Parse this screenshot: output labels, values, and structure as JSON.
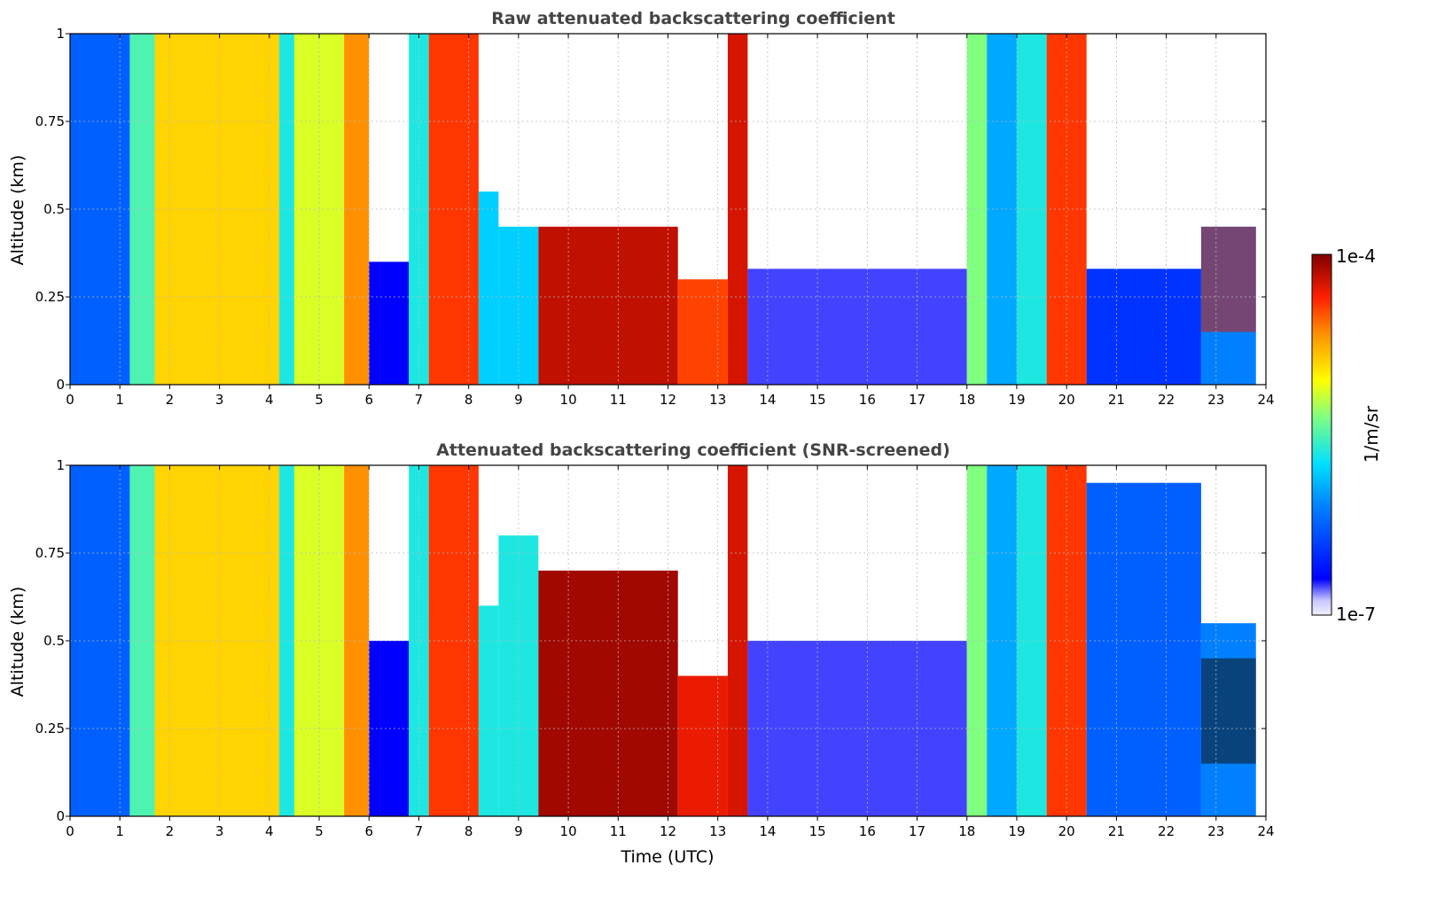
{
  "chart_data": [
    {
      "type": "heatmap",
      "title": "Raw attenuated backscattering coefficient",
      "xlabel": "",
      "ylabel": "Altitude (km)",
      "xlim": [
        0,
        24
      ],
      "ylim": [
        0,
        1
      ],
      "x_ticks": [
        "0",
        "1",
        "2",
        "3",
        "4",
        "5",
        "6",
        "7",
        "8",
        "9",
        "10",
        "11",
        "12",
        "13",
        "14",
        "15",
        "16",
        "17",
        "18",
        "19",
        "20",
        "21",
        "22",
        "23",
        "24"
      ],
      "y_ticks": [
        "0",
        "0.25",
        "0.5",
        "0.75",
        "1"
      ],
      "grid": true,
      "colorscale": "jet",
      "screened": false,
      "segments": [
        {
          "t0": 0.0,
          "t1": 1.2,
          "level": 0.25,
          "top": 1.0
        },
        {
          "t0": 1.2,
          "t1": 1.7,
          "level": 0.5,
          "top": 1.0
        },
        {
          "t0": 1.7,
          "t1": 4.2,
          "level": 0.7,
          "top": 1.0
        },
        {
          "t0": 4.2,
          "t1": 4.5,
          "level": 0.45,
          "top": 1.0
        },
        {
          "t0": 4.5,
          "t1": 5.5,
          "level": 0.62,
          "top": 1.0
        },
        {
          "t0": 5.5,
          "t1": 6.0,
          "level": 0.78,
          "top": 1.0
        },
        {
          "t0": 6.0,
          "t1": 6.8,
          "level": 0.1,
          "top": 0.35
        },
        {
          "t0": 6.8,
          "t1": 7.2,
          "level": 0.45,
          "top": 1.0
        },
        {
          "t0": 7.2,
          "t1": 8.2,
          "level": 0.86,
          "top": 1.0
        },
        {
          "t0": 8.2,
          "t1": 8.6,
          "level": 0.4,
          "top": 0.55
        },
        {
          "t0": 8.6,
          "t1": 9.4,
          "level": 0.4,
          "top": 0.45
        },
        {
          "t0": 9.4,
          "t1": 12.2,
          "level": 0.94,
          "top": 0.45
        },
        {
          "t0": 12.2,
          "t1": 13.2,
          "level": 0.85,
          "top": 0.3
        },
        {
          "t0": 13.2,
          "t1": 13.6,
          "level": 0.92,
          "top": 1.0
        },
        {
          "t0": 13.6,
          "t1": 18.0,
          "level": 0.08,
          "top": 0.33
        },
        {
          "t0": 18.0,
          "t1": 18.4,
          "level": 0.55,
          "top": 1.0
        },
        {
          "t0": 18.4,
          "t1": 19.0,
          "level": 0.35,
          "top": 1.0
        },
        {
          "t0": 19.0,
          "t1": 19.6,
          "level": 0.45,
          "top": 1.0
        },
        {
          "t0": 19.6,
          "t1": 20.4,
          "level": 0.86,
          "top": 1.0
        },
        {
          "t0": 20.4,
          "t1": 22.7,
          "level": 0.18,
          "top": 0.33
        },
        {
          "t0": 22.7,
          "t1": 23.8,
          "level": 0.3,
          "top": 0.45
        }
      ],
      "clouds": [
        {
          "t0": 22.7,
          "t1": 23.8,
          "bottom": 0.15,
          "top": 0.45,
          "level": 0.92
        }
      ]
    },
    {
      "type": "heatmap",
      "title": "Attenuated backscattering coefficient (SNR-screened)",
      "xlabel": "Time (UTC)",
      "ylabel": "Altitude (km)",
      "xlim": [
        0,
        24
      ],
      "ylim": [
        0,
        1
      ],
      "x_ticks": [
        "0",
        "1",
        "2",
        "3",
        "4",
        "5",
        "6",
        "7",
        "8",
        "9",
        "10",
        "11",
        "12",
        "13",
        "14",
        "15",
        "16",
        "17",
        "18",
        "19",
        "20",
        "21",
        "22",
        "23",
        "24"
      ],
      "y_ticks": [
        "0",
        "0.25",
        "0.5",
        "0.75",
        "1"
      ],
      "grid": true,
      "colorscale": "jet",
      "screened": true,
      "segments": [
        {
          "t0": 0.0,
          "t1": 1.2,
          "level": 0.25,
          "top": 1.0
        },
        {
          "t0": 1.2,
          "t1": 1.7,
          "level": 0.5,
          "top": 1.0
        },
        {
          "t0": 1.7,
          "t1": 4.2,
          "level": 0.7,
          "top": 1.0
        },
        {
          "t0": 4.2,
          "t1": 4.5,
          "level": 0.45,
          "top": 1.0
        },
        {
          "t0": 4.5,
          "t1": 5.5,
          "level": 0.62,
          "top": 1.0
        },
        {
          "t0": 5.5,
          "t1": 6.0,
          "level": 0.78,
          "top": 1.0
        },
        {
          "t0": 6.0,
          "t1": 6.8,
          "level": 0.1,
          "top": 0.5
        },
        {
          "t0": 6.8,
          "t1": 7.2,
          "level": 0.45,
          "top": 1.0
        },
        {
          "t0": 7.2,
          "t1": 8.2,
          "level": 0.86,
          "top": 1.0
        },
        {
          "t0": 8.2,
          "t1": 8.6,
          "level": 0.45,
          "top": 0.6
        },
        {
          "t0": 8.6,
          "t1": 9.4,
          "level": 0.45,
          "top": 0.8
        },
        {
          "t0": 9.4,
          "t1": 12.2,
          "level": 0.97,
          "top": 0.7
        },
        {
          "t0": 12.2,
          "t1": 13.2,
          "level": 0.9,
          "top": 0.4
        },
        {
          "t0": 13.2,
          "t1": 13.6,
          "level": 0.92,
          "top": 1.0
        },
        {
          "t0": 13.6,
          "t1": 18.0,
          "level": 0.08,
          "top": 0.5
        },
        {
          "t0": 18.0,
          "t1": 18.4,
          "level": 0.55,
          "top": 1.0
        },
        {
          "t0": 18.4,
          "t1": 19.0,
          "level": 0.35,
          "top": 1.0
        },
        {
          "t0": 19.0,
          "t1": 19.6,
          "level": 0.45,
          "top": 1.0
        },
        {
          "t0": 19.6,
          "t1": 20.4,
          "level": 0.86,
          "top": 1.0
        },
        {
          "t0": 20.4,
          "t1": 22.7,
          "level": 0.25,
          "top": 0.95
        },
        {
          "t0": 22.7,
          "t1": 23.8,
          "level": 0.3,
          "top": 0.55
        }
      ],
      "clouds": [
        {
          "t0": 22.7,
          "t1": 23.8,
          "bottom": 0.15,
          "top": 0.45,
          "level": 1.0
        }
      ]
    }
  ],
  "colorbar": {
    "max_label": "1e-4",
    "min_label": "1e-7",
    "label": "1/m/sr",
    "scale": "log",
    "range": [
      1e-07,
      0.0001
    ]
  }
}
